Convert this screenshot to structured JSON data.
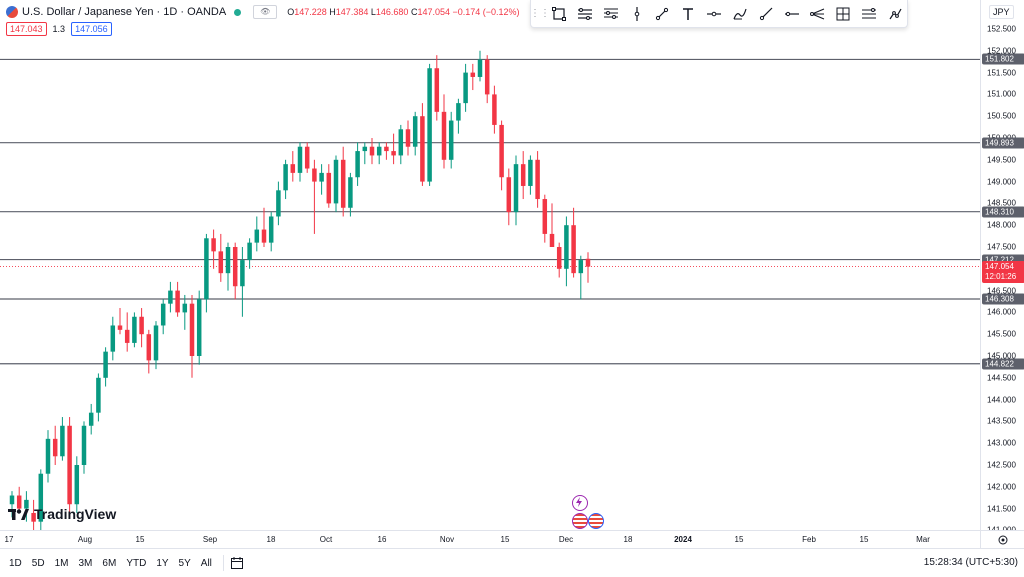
{
  "legend": {
    "title": "U.S. Dollar / Japanese Yen · 1D · OANDA",
    "open_label": "O",
    "open": "147.228",
    "high_label": "H",
    "high": "147.384",
    "low_label": "L",
    "low": "146.680",
    "close_label": "C",
    "close": "147.054",
    "change": "−0.174 (−0.12%)",
    "sell_price": "147.043",
    "spread": "1.3",
    "buy_price": "147.056"
  },
  "toolbar": {
    "icons": [
      "rectangle-icon",
      "parallel-channel-icon",
      "fib-retracement-icon",
      "vertical-line-icon",
      "trend-line-icon",
      "text-icon",
      "horizontal-ray-icon",
      "brush-icon",
      "ray-icon",
      "extended-line-icon",
      "pitchfork-icon",
      "grid-icon",
      "long-position-icon",
      "path-icon"
    ]
  },
  "price_axis": {
    "currency": "JPY",
    "ticks": [
      "152.500",
      "152.000",
      "151.500",
      "151.000",
      "150.500",
      "150.000",
      "149.500",
      "149.000",
      "148.500",
      "148.000",
      "147.500",
      "146.500",
      "146.000",
      "145.500",
      "145.000",
      "144.500",
      "144.000",
      "143.500",
      "143.000",
      "142.500",
      "142.000",
      "141.500",
      "141.000"
    ],
    "level_labels": [
      "151.802",
      "149.893",
      "148.310",
      "147.212",
      "146.308",
      "144.822"
    ],
    "current_price": "147.054",
    "countdown": "12:01:26"
  },
  "time_axis": {
    "labels": [
      "17",
      "Aug",
      "15",
      "Sep",
      "18",
      "Oct",
      "16",
      "Nov",
      "15",
      "Dec",
      "18",
      "2024",
      "15",
      "Feb",
      "15",
      "Mar"
    ]
  },
  "bottom_bar": {
    "ranges": [
      "1D",
      "5D",
      "1M",
      "3M",
      "6M",
      "YTD",
      "1Y",
      "5Y",
      "All"
    ],
    "clock": "15:28:34 (UTC+5:30)"
  },
  "branding": {
    "logo_text": "TradingView"
  },
  "chart_data": {
    "type": "candlestick",
    "symbol": "USDJPY",
    "ylim": [
      140.9,
      152.6
    ],
    "horizontal_levels": [
      151.802,
      149.893,
      148.31,
      147.212,
      146.308,
      144.822
    ],
    "current_price": 147.054,
    "candles": [
      [
        141.6,
        141.9,
        141.3,
        141.8
      ],
      [
        141.8,
        142.0,
        141.4,
        141.5
      ],
      [
        141.5,
        141.9,
        141.2,
        141.7
      ],
      [
        141.4,
        141.7,
        141.0,
        141.2
      ],
      [
        141.2,
        142.4,
        141.0,
        142.3
      ],
      [
        142.3,
        143.3,
        142.1,
        143.1
      ],
      [
        143.1,
        143.4,
        142.5,
        142.7
      ],
      [
        142.7,
        143.6,
        142.6,
        143.4
      ],
      [
        143.4,
        143.6,
        141.3,
        141.6
      ],
      [
        141.6,
        142.7,
        141.4,
        142.5
      ],
      [
        142.5,
        143.5,
        142.3,
        143.4
      ],
      [
        143.4,
        143.9,
        143.2,
        143.7
      ],
      [
        143.7,
        144.6,
        143.5,
        144.5
      ],
      [
        144.5,
        145.2,
        144.3,
        145.1
      ],
      [
        145.1,
        145.9,
        144.9,
        145.7
      ],
      [
        145.7,
        146.1,
        145.5,
        145.6
      ],
      [
        145.6,
        146.0,
        145.1,
        145.3
      ],
      [
        145.3,
        146.0,
        145.2,
        145.9
      ],
      [
        145.9,
        146.1,
        145.2,
        145.5
      ],
      [
        145.5,
        145.6,
        144.6,
        144.9
      ],
      [
        144.9,
        145.8,
        144.7,
        145.7
      ],
      [
        145.7,
        146.3,
        145.5,
        146.2
      ],
      [
        146.2,
        146.7,
        146.0,
        146.5
      ],
      [
        146.5,
        146.7,
        145.9,
        146.0
      ],
      [
        146.0,
        146.4,
        145.6,
        146.2
      ],
      [
        146.2,
        146.4,
        144.5,
        145.0
      ],
      [
        145.0,
        146.5,
        144.8,
        146.3
      ],
      [
        146.3,
        147.8,
        146.0,
        147.7
      ],
      [
        147.7,
        147.9,
        147.0,
        147.4
      ],
      [
        147.4,
        147.8,
        146.7,
        146.9
      ],
      [
        146.9,
        147.6,
        146.5,
        147.5
      ],
      [
        147.5,
        147.6,
        146.3,
        146.6
      ],
      [
        146.6,
        147.5,
        145.9,
        147.2
      ],
      [
        147.2,
        147.7,
        147.0,
        147.6
      ],
      [
        147.6,
        148.2,
        147.4,
        147.9
      ],
      [
        147.9,
        148.4,
        147.5,
        147.6
      ],
      [
        147.6,
        148.3,
        147.4,
        148.2
      ],
      [
        148.2,
        149.0,
        148.0,
        148.8
      ],
      [
        148.8,
        149.5,
        148.6,
        149.4
      ],
      [
        149.4,
        149.7,
        149.0,
        149.2
      ],
      [
        149.2,
        149.9,
        149.0,
        149.8
      ],
      [
        149.8,
        149.9,
        149.2,
        149.3
      ],
      [
        149.3,
        149.5,
        147.8,
        149.0
      ],
      [
        149.0,
        149.4,
        148.7,
        149.2
      ],
      [
        149.2,
        149.4,
        148.4,
        148.5
      ],
      [
        148.5,
        149.6,
        148.3,
        149.5
      ],
      [
        149.5,
        149.8,
        148.2,
        148.4
      ],
      [
        148.4,
        149.2,
        148.2,
        149.1
      ],
      [
        149.1,
        149.9,
        148.9,
        149.7
      ],
      [
        149.7,
        149.9,
        149.4,
        149.8
      ],
      [
        149.8,
        150.0,
        149.4,
        149.6
      ],
      [
        149.6,
        149.9,
        149.4,
        149.8
      ],
      [
        149.8,
        149.9,
        149.5,
        149.7
      ],
      [
        149.7,
        150.1,
        149.4,
        149.6
      ],
      [
        149.6,
        150.3,
        149.4,
        150.2
      ],
      [
        150.2,
        150.4,
        149.6,
        149.8
      ],
      [
        149.8,
        150.6,
        149.6,
        150.5
      ],
      [
        150.5,
        150.8,
        148.9,
        149.0
      ],
      [
        149.0,
        151.7,
        148.9,
        151.6
      ],
      [
        151.6,
        151.9,
        150.4,
        150.6
      ],
      [
        150.6,
        151.0,
        149.3,
        149.5
      ],
      [
        149.5,
        150.6,
        149.3,
        150.4
      ],
      [
        150.4,
        150.9,
        150.1,
        150.8
      ],
      [
        150.8,
        151.7,
        150.6,
        151.5
      ],
      [
        151.5,
        151.7,
        151.1,
        151.4
      ],
      [
        151.4,
        152.0,
        151.3,
        151.8
      ],
      [
        151.8,
        151.9,
        150.8,
        151.0
      ],
      [
        151.0,
        151.2,
        150.1,
        150.3
      ],
      [
        150.3,
        150.4,
        148.8,
        149.1
      ],
      [
        149.1,
        149.3,
        148.0,
        148.3
      ],
      [
        148.3,
        149.6,
        148.0,
        149.4
      ],
      [
        149.4,
        149.7,
        148.6,
        148.9
      ],
      [
        148.9,
        149.6,
        148.7,
        149.5
      ],
      [
        149.5,
        149.7,
        148.4,
        148.6
      ],
      [
        148.6,
        148.7,
        147.6,
        147.8
      ],
      [
        147.8,
        148.5,
        147.5,
        147.5
      ],
      [
        147.5,
        147.6,
        146.8,
        147.0
      ],
      [
        147.0,
        148.2,
        146.6,
        148.0
      ],
      [
        148.0,
        148.4,
        146.8,
        146.9
      ],
      [
        146.9,
        147.3,
        146.3,
        147.2
      ],
      [
        147.23,
        147.38,
        146.68,
        147.05
      ]
    ]
  }
}
